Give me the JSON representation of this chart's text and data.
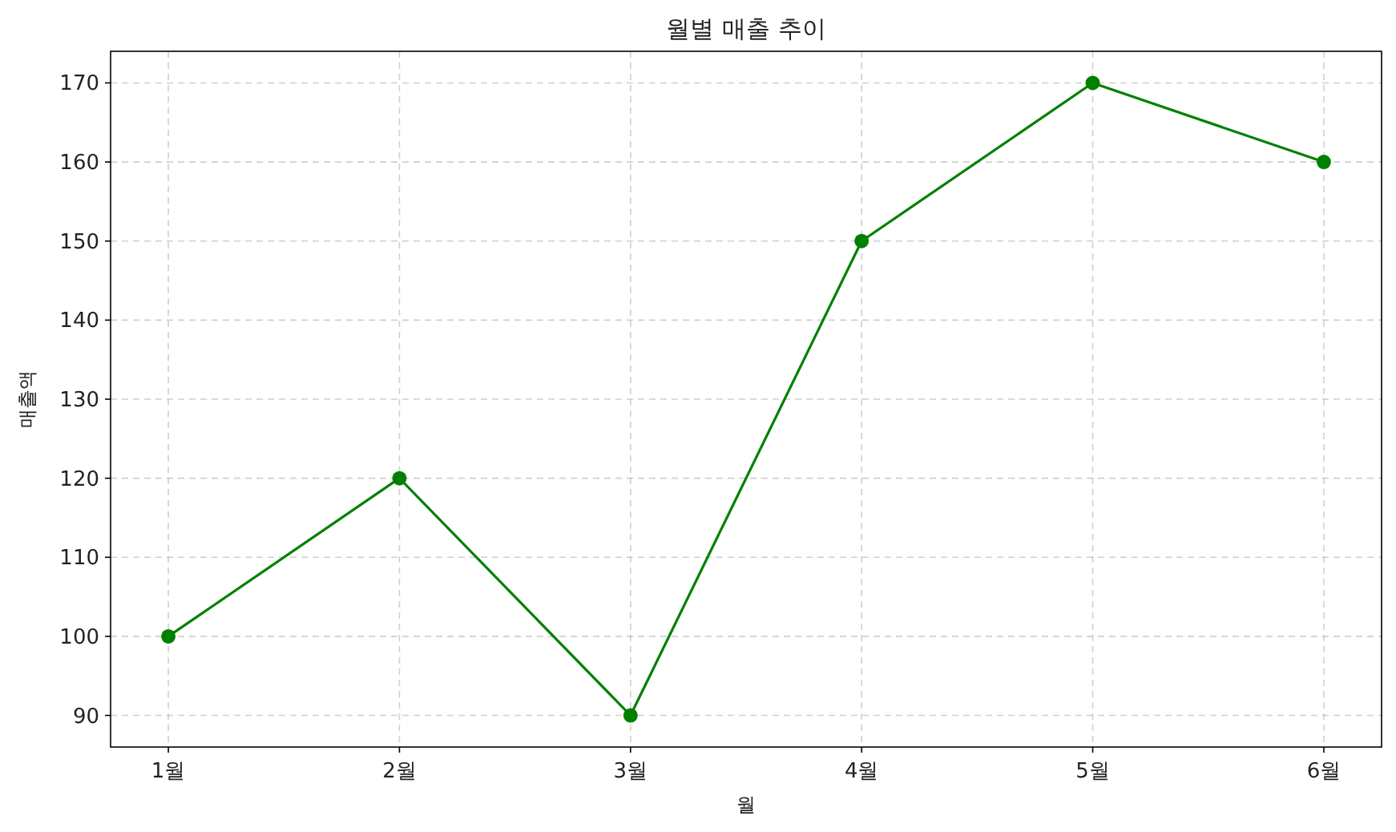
{
  "chart_data": {
    "type": "line",
    "title": "월별 매출 추이",
    "xlabel": "월",
    "ylabel": "매출액",
    "categories": [
      "1월",
      "2월",
      "3월",
      "4월",
      "5월",
      "6월"
    ],
    "series": [
      {
        "color": "#008000",
        "values": [
          100,
          120,
          90,
          150,
          170,
          160
        ]
      }
    ],
    "ylim": [
      86,
      174
    ],
    "yticks": [
      90,
      100,
      110,
      120,
      130,
      140,
      150,
      160,
      170
    ],
    "grid": true,
    "marker": "circle",
    "line_style": "solid"
  }
}
